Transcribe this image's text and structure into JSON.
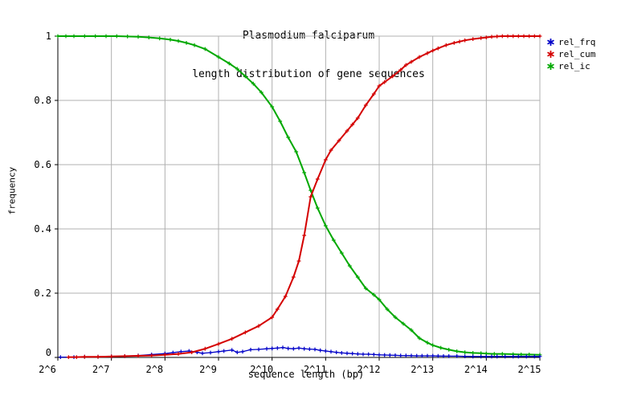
{
  "title": {
    "line1": "Plasmodium falciparum",
    "line2": "length distribution of gene sequences"
  },
  "axes": {
    "x_label": "sequence length (bp)",
    "y_label": "frequency"
  },
  "legend": {
    "items": [
      {
        "label": "rel_frq",
        "color": "#0000c8",
        "marker": "star"
      },
      {
        "label": "rel_cum",
        "color": "#d40000",
        "marker": "star"
      },
      {
        "label": "rel_ic",
        "color": "#00a800",
        "marker": "star"
      }
    ]
  },
  "colors": {
    "grid": "#b0b0b0",
    "axis": "#000000",
    "background": "#ffffff"
  },
  "chart_data": {
    "type": "line",
    "title": "Plasmodium falciparum length distribution of gene sequences",
    "xlabel": "sequence length (bp)",
    "ylabel": "frequency",
    "x_scale": "log2",
    "xlim_log2": [
      6,
      15
    ],
    "ylim": [
      0,
      1
    ],
    "grid": true,
    "legend_position": "outside-top-right",
    "x_ticks": [
      {
        "log2": 6,
        "label": "2^6"
      },
      {
        "log2": 7,
        "label": "2^7"
      },
      {
        "log2": 8,
        "label": "2^8"
      },
      {
        "log2": 9,
        "label": "2^9"
      },
      {
        "log2": 10,
        "label": "2^10"
      },
      {
        "log2": 11,
        "label": "2^11"
      },
      {
        "log2": 12,
        "label": "2^12"
      },
      {
        "log2": 13,
        "label": "2^13"
      },
      {
        "log2": 14,
        "label": "2^14"
      },
      {
        "log2": 15,
        "label": "2^15"
      }
    ],
    "y_ticks": [
      {
        "value": 0,
        "label": "0"
      },
      {
        "value": 0.2,
        "label": "0.2"
      },
      {
        "value": 0.4,
        "label": "0.4"
      },
      {
        "value": 0.6,
        "label": "0.6"
      },
      {
        "value": 0.8,
        "label": "0.8"
      },
      {
        "value": 1,
        "label": "1"
      }
    ],
    "series": [
      {
        "name": "rel_ic",
        "color": "#00a800",
        "marker": "plus",
        "line_width": 2,
        "points_log2_v": [
          [
            6.0,
            1.0
          ],
          [
            6.15,
            1.0
          ],
          [
            6.3,
            1.0
          ],
          [
            6.5,
            1.0
          ],
          [
            6.7,
            1.0
          ],
          [
            6.9,
            1.0
          ],
          [
            7.1,
            1.0
          ],
          [
            7.3,
            0.999
          ],
          [
            7.5,
            0.998
          ],
          [
            7.7,
            0.996
          ],
          [
            7.9,
            0.993
          ],
          [
            8.1,
            0.989
          ],
          [
            8.25,
            0.985
          ],
          [
            8.4,
            0.979
          ],
          [
            8.55,
            0.972
          ],
          [
            8.75,
            0.96
          ],
          [
            9.0,
            0.935
          ],
          [
            9.2,
            0.915
          ],
          [
            9.35,
            0.898
          ],
          [
            9.5,
            0.875
          ],
          [
            9.65,
            0.852
          ],
          [
            9.8,
            0.825
          ],
          [
            10.0,
            0.78
          ],
          [
            10.15,
            0.735
          ],
          [
            10.3,
            0.685
          ],
          [
            10.45,
            0.64
          ],
          [
            10.6,
            0.575
          ],
          [
            10.72,
            0.52
          ],
          [
            10.85,
            0.465
          ],
          [
            11.0,
            0.41
          ],
          [
            11.15,
            0.365
          ],
          [
            11.3,
            0.325
          ],
          [
            11.45,
            0.285
          ],
          [
            11.6,
            0.25
          ],
          [
            11.75,
            0.215
          ],
          [
            11.9,
            0.195
          ],
          [
            12.0,
            0.18
          ],
          [
            12.15,
            0.15
          ],
          [
            12.3,
            0.125
          ],
          [
            12.45,
            0.105
          ],
          [
            12.6,
            0.085
          ],
          [
            12.75,
            0.06
          ],
          [
            12.9,
            0.046
          ],
          [
            13.0,
            0.038
          ],
          [
            13.15,
            0.03
          ],
          [
            13.3,
            0.024
          ],
          [
            13.45,
            0.019
          ],
          [
            13.6,
            0.016
          ],
          [
            13.75,
            0.014
          ],
          [
            13.9,
            0.013
          ],
          [
            14.0,
            0.012
          ],
          [
            14.15,
            0.011
          ],
          [
            14.3,
            0.011
          ],
          [
            14.5,
            0.01
          ],
          [
            14.65,
            0.009
          ],
          [
            14.8,
            0.009
          ],
          [
            15.0,
            0.008
          ]
        ]
      },
      {
        "name": "rel_frq",
        "color": "#0000c8",
        "marker": "plus",
        "line_width": 1.3,
        "points_log2_v": [
          [
            6.05,
            0.001
          ],
          [
            6.3,
            0.001
          ],
          [
            6.5,
            0.002
          ],
          [
            6.75,
            0.002
          ],
          [
            7.0,
            0.003
          ],
          [
            7.25,
            0.004
          ],
          [
            7.5,
            0.006
          ],
          [
            7.75,
            0.009
          ],
          [
            8.0,
            0.012
          ],
          [
            8.15,
            0.015
          ],
          [
            8.3,
            0.018
          ],
          [
            8.45,
            0.02
          ],
          [
            8.6,
            0.016
          ],
          [
            8.7,
            0.013
          ],
          [
            8.85,
            0.015
          ],
          [
            9.0,
            0.018
          ],
          [
            9.1,
            0.02
          ],
          [
            9.25,
            0.023
          ],
          [
            9.35,
            0.016
          ],
          [
            9.45,
            0.018
          ],
          [
            9.6,
            0.024
          ],
          [
            9.75,
            0.025
          ],
          [
            9.9,
            0.027
          ],
          [
            10.0,
            0.028
          ],
          [
            10.1,
            0.029
          ],
          [
            10.2,
            0.031
          ],
          [
            10.3,
            0.028
          ],
          [
            10.4,
            0.027
          ],
          [
            10.5,
            0.029
          ],
          [
            10.6,
            0.027
          ],
          [
            10.7,
            0.026
          ],
          [
            10.8,
            0.025
          ],
          [
            10.9,
            0.022
          ],
          [
            11.0,
            0.02
          ],
          [
            11.1,
            0.018
          ],
          [
            11.2,
            0.016
          ],
          [
            11.3,
            0.014
          ],
          [
            11.4,
            0.013
          ],
          [
            11.5,
            0.012
          ],
          [
            11.6,
            0.011
          ],
          [
            11.7,
            0.01
          ],
          [
            11.8,
            0.01
          ],
          [
            11.9,
            0.009
          ],
          [
            12.0,
            0.008
          ],
          [
            12.1,
            0.0075
          ],
          [
            12.2,
            0.007
          ],
          [
            12.3,
            0.0065
          ],
          [
            12.4,
            0.006
          ],
          [
            12.5,
            0.006
          ],
          [
            12.6,
            0.0055
          ],
          [
            12.7,
            0.005
          ],
          [
            12.8,
            0.005
          ],
          [
            12.9,
            0.005
          ],
          [
            13.0,
            0.005
          ],
          [
            13.1,
            0.0045
          ],
          [
            13.2,
            0.004
          ],
          [
            13.3,
            0.004
          ],
          [
            13.45,
            0.004
          ],
          [
            13.6,
            0.0035
          ],
          [
            13.75,
            0.003
          ],
          [
            13.9,
            0.003
          ],
          [
            14.0,
            0.003
          ],
          [
            14.1,
            0.003
          ],
          [
            14.2,
            0.003
          ],
          [
            14.35,
            0.003
          ],
          [
            14.5,
            0.003
          ],
          [
            14.6,
            0.003
          ],
          [
            14.75,
            0.003
          ],
          [
            14.9,
            0.003
          ],
          [
            15.0,
            0.003
          ]
        ]
      },
      {
        "name": "rel_cum",
        "color": "#d40000",
        "marker": "plus",
        "line_width": 2,
        "points_log2_v": [
          [
            6.2,
            0.001
          ],
          [
            6.35,
            0.001
          ],
          [
            6.5,
            0.002
          ],
          [
            6.75,
            0.002
          ],
          [
            7.0,
            0.003
          ],
          [
            7.25,
            0.004
          ],
          [
            7.5,
            0.005
          ],
          [
            7.75,
            0.006
          ],
          [
            8.0,
            0.008
          ],
          [
            8.25,
            0.011
          ],
          [
            8.5,
            0.016
          ],
          [
            8.75,
            0.027
          ],
          [
            9.0,
            0.042
          ],
          [
            9.25,
            0.058
          ],
          [
            9.5,
            0.078
          ],
          [
            9.75,
            0.098
          ],
          [
            10.0,
            0.125
          ],
          [
            10.1,
            0.15
          ],
          [
            10.25,
            0.19
          ],
          [
            10.4,
            0.25
          ],
          [
            10.5,
            0.3
          ],
          [
            10.6,
            0.38
          ],
          [
            10.72,
            0.5
          ],
          [
            10.85,
            0.555
          ],
          [
            11.0,
            0.615
          ],
          [
            11.1,
            0.645
          ],
          [
            11.25,
            0.675
          ],
          [
            11.4,
            0.705
          ],
          [
            11.5,
            0.725
          ],
          [
            11.6,
            0.745
          ],
          [
            11.75,
            0.785
          ],
          [
            11.9,
            0.82
          ],
          [
            12.0,
            0.845
          ],
          [
            12.1,
            0.857
          ],
          [
            12.25,
            0.875
          ],
          [
            12.4,
            0.895
          ],
          [
            12.5,
            0.91
          ],
          [
            12.6,
            0.92
          ],
          [
            12.75,
            0.935
          ],
          [
            12.9,
            0.947
          ],
          [
            13.0,
            0.955
          ],
          [
            13.1,
            0.962
          ],
          [
            13.25,
            0.972
          ],
          [
            13.4,
            0.979
          ],
          [
            13.5,
            0.983
          ],
          [
            13.6,
            0.987
          ],
          [
            13.75,
            0.991
          ],
          [
            13.9,
            0.994
          ],
          [
            14.0,
            0.996
          ],
          [
            14.1,
            0.998
          ],
          [
            14.2,
            0.999
          ],
          [
            14.3,
            1.0
          ],
          [
            14.4,
            1.0
          ],
          [
            14.5,
            1.0
          ],
          [
            14.6,
            1.0
          ],
          [
            14.7,
            1.0
          ],
          [
            14.8,
            1.0
          ],
          [
            14.9,
            1.0
          ],
          [
            15.0,
            1.0
          ]
        ]
      }
    ]
  }
}
